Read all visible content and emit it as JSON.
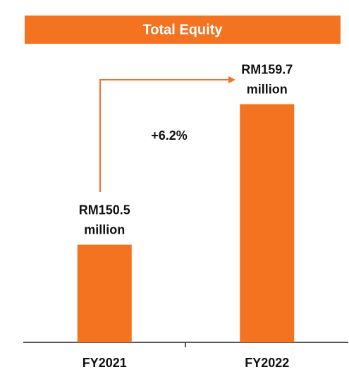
{
  "chart_data": {
    "type": "bar",
    "title": "Total Equity",
    "annotation": "+6.2%",
    "categories": [
      "FY2021",
      "FY2022"
    ],
    "values": [
      150.5,
      159.7
    ],
    "value_labels": [
      "RM150.5 million",
      "RM159.7 million"
    ],
    "color": "#f37321",
    "ylim": [
      144.1,
      161.9
    ]
  }
}
